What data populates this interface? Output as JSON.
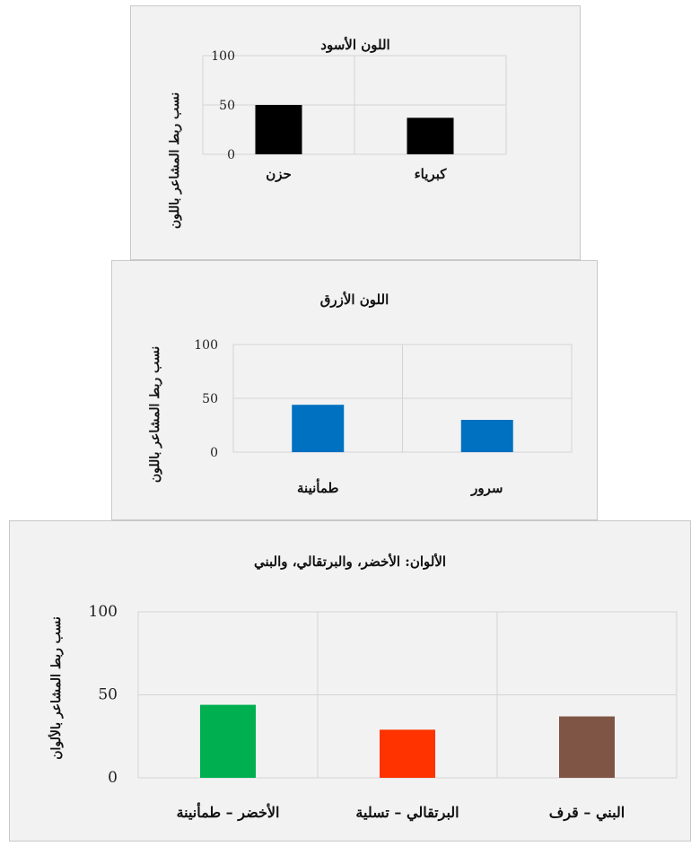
{
  "chart_data": [
    {
      "type": "bar",
      "title": "اللون الأسود",
      "ylabel": "نسب ربط المشاعر باللون",
      "xlabel": "",
      "ylim": [
        0,
        100
      ],
      "yticks": [
        0,
        50,
        100
      ],
      "grid": true,
      "categories": [
        "حزن",
        "كبرياء"
      ],
      "values": [
        50,
        37
      ],
      "colors": [
        "#000000",
        "#000000"
      ]
    },
    {
      "type": "bar",
      "title": "اللون الأزرق",
      "ylabel": "نسب ربط المشاعر باللون",
      "xlabel": "",
      "ylim": [
        0,
        100
      ],
      "yticks": [
        0,
        50,
        100
      ],
      "grid": true,
      "categories": [
        "طمأنينة",
        "سرور"
      ],
      "values": [
        44,
        30
      ],
      "colors": [
        "#0070c0",
        "#0070c0"
      ]
    },
    {
      "type": "bar",
      "title": "الألوان: الأخضر، والبرتقالي، والبني",
      "ylabel": "نسب ربط المشاعر بالألوان",
      "xlabel": "",
      "ylim": [
        0,
        100
      ],
      "yticks": [
        0,
        50,
        100
      ],
      "grid": true,
      "categories": [
        "الأخضر – طمأنينة",
        "البرتقالي – تسلية",
        "البني – قرف"
      ],
      "values": [
        44,
        29,
        37
      ],
      "colors": [
        "#00b050",
        "#ff3300",
        "#7f5545"
      ]
    }
  ]
}
